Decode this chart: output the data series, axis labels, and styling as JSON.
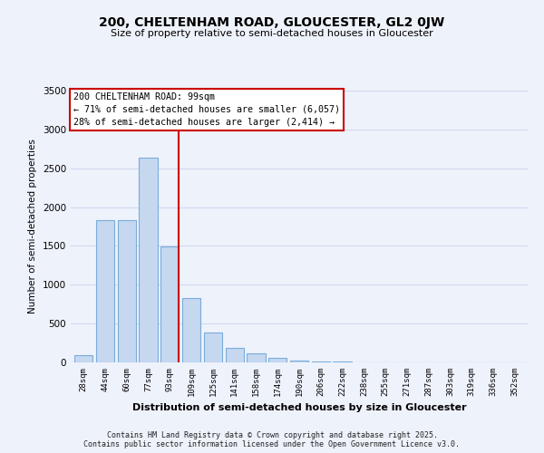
{
  "title": "200, CHELTENHAM ROAD, GLOUCESTER, GL2 0JW",
  "subtitle": "Size of property relative to semi-detached houses in Gloucester",
  "xlabel": "Distribution of semi-detached houses by size in Gloucester",
  "ylabel": "Number of semi-detached properties",
  "bar_labels": [
    "28sqm",
    "44sqm",
    "60sqm",
    "77sqm",
    "93sqm",
    "109sqm",
    "125sqm",
    "141sqm",
    "158sqm",
    "174sqm",
    "190sqm",
    "206sqm",
    "222sqm",
    "238sqm",
    "255sqm",
    "271sqm",
    "287sqm",
    "303sqm",
    "319sqm",
    "336sqm",
    "352sqm"
  ],
  "bar_values": [
    95,
    1830,
    1830,
    2640,
    1490,
    830,
    390,
    185,
    115,
    60,
    25,
    15,
    8,
    5,
    3,
    2,
    2,
    2,
    1,
    1,
    1
  ],
  "bar_color": "#c5d8f0",
  "bar_edge_color": "#7aacda",
  "vline_color": "#cc0000",
  "annotation_title": "200 CHELTENHAM ROAD: 99sqm",
  "annotation_line1": "← 71% of semi-detached houses are smaller (6,057)",
  "annotation_line2": "28% of semi-detached houses are larger (2,414) →",
  "annotation_box_color": "#ffffff",
  "annotation_box_edge": "#cc0000",
  "ylim": [
    0,
    3500
  ],
  "yticks": [
    0,
    500,
    1000,
    1500,
    2000,
    2500,
    3000,
    3500
  ],
  "footer1": "Contains HM Land Registry data © Crown copyright and database right 2025.",
  "footer2": "Contains public sector information licensed under the Open Government Licence v3.0.",
  "bg_color": "#eef2fb",
  "grid_color": "#d0d8ee"
}
